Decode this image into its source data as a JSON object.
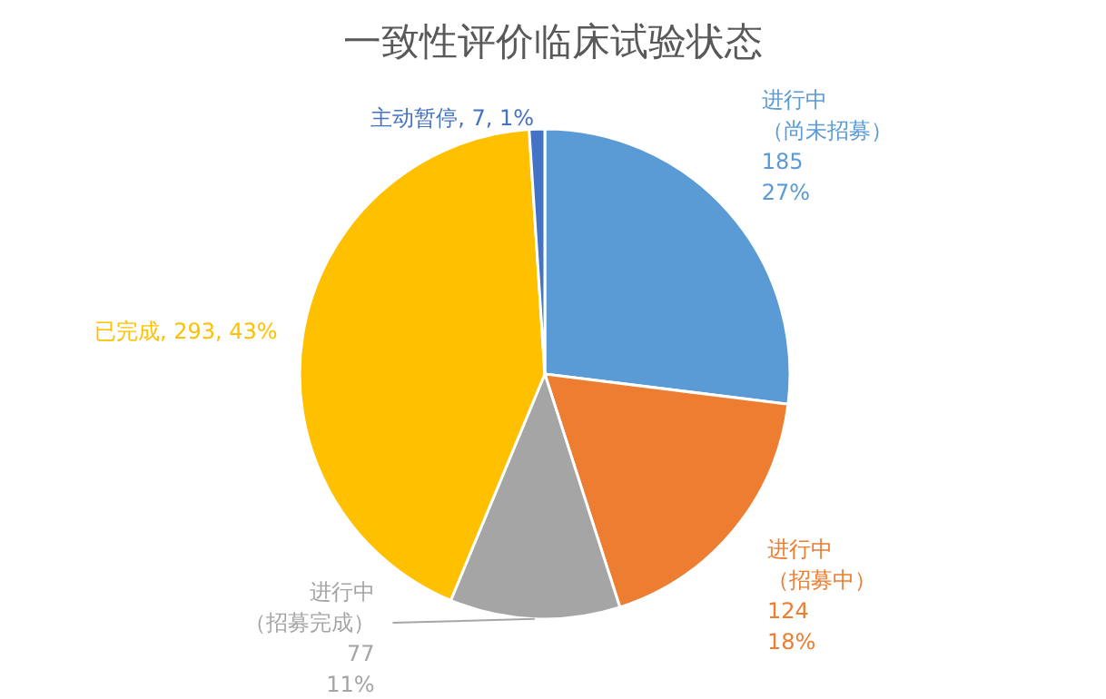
{
  "chart_data": {
    "type": "pie",
    "title": "一致性评价临床试验状态",
    "categories": [
      "进行中（尚未招募）",
      "进行中（招募中）",
      "进行中（招募完成）",
      "已完成",
      "主动暂停"
    ],
    "values": [
      185,
      124,
      77,
      293,
      7
    ],
    "colors": [
      "#5b9bd5",
      "#ed7d31",
      "#a5a5a5",
      "#ffc000",
      "#4472c4"
    ],
    "value_labels": [
      "185\n27%",
      "124\n18%",
      "77\n11%",
      "293, 43%",
      "7, 1%"
    ],
    "legend": false
  }
}
